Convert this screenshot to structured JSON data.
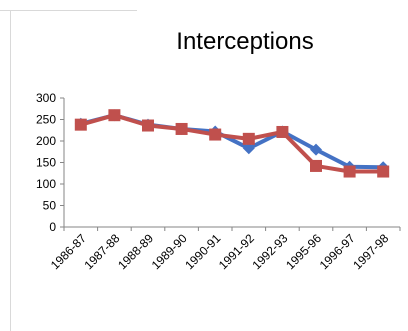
{
  "chart_data": {
    "type": "line",
    "title": "Interceptions",
    "xlabel": "",
    "ylabel": "",
    "categories": [
      "1986-87",
      "1987-88",
      "1988-89",
      "1989-90",
      "1990-91",
      "1991-92",
      "1992-93",
      "1995-96",
      "1996-97",
      "1997-98"
    ],
    "series": [
      {
        "color": "#4472c4",
        "marker": "diamond",
        "values": [
          240,
          260,
          238,
          228,
          222,
          183,
          222,
          180,
          140,
          139
        ]
      },
      {
        "color": "#c0504d",
        "marker": "square",
        "values": [
          238,
          260,
          236,
          228,
          215,
          205,
          221,
          142,
          129,
          129
        ]
      }
    ],
    "ylim": [
      0,
      300
    ],
    "yticks": [
      "0",
      "50",
      "100",
      "150",
      "200",
      "250",
      "300"
    ],
    "grid": false,
    "legend": "none"
  }
}
